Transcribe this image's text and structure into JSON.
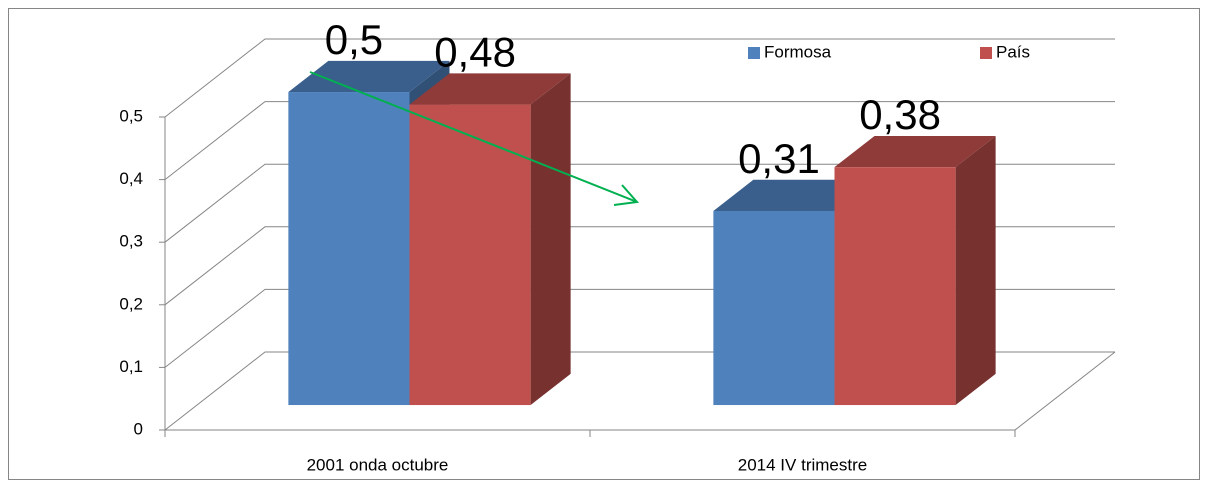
{
  "chart_data": {
    "type": "bar3d",
    "categories": [
      "2001 onda octubre",
      "2014 IV trimestre"
    ],
    "series": [
      {
        "name": "Formosa",
        "color": "#4f81bd",
        "values": [
          0.5,
          0.31
        ],
        "value_labels": [
          "0,5",
          "0,31"
        ]
      },
      {
        "name": "País",
        "color": "#c0504d",
        "values": [
          0.48,
          0.38
        ],
        "value_labels": [
          "0,48",
          "0,38"
        ]
      }
    ],
    "ylim": [
      0,
      0.5
    ],
    "yticks": [
      0,
      {
        "value": 0.1,
        "label": "0,1"
      },
      {
        "value": 0.2,
        "label": "0,2"
      },
      {
        "value": 0.3,
        "label": "0,3"
      },
      {
        "value": 0.4,
        "label": "0,4"
      },
      {
        "value": 0.5,
        "label": "0,5"
      }
    ],
    "grid": true,
    "legend": "top-right"
  }
}
